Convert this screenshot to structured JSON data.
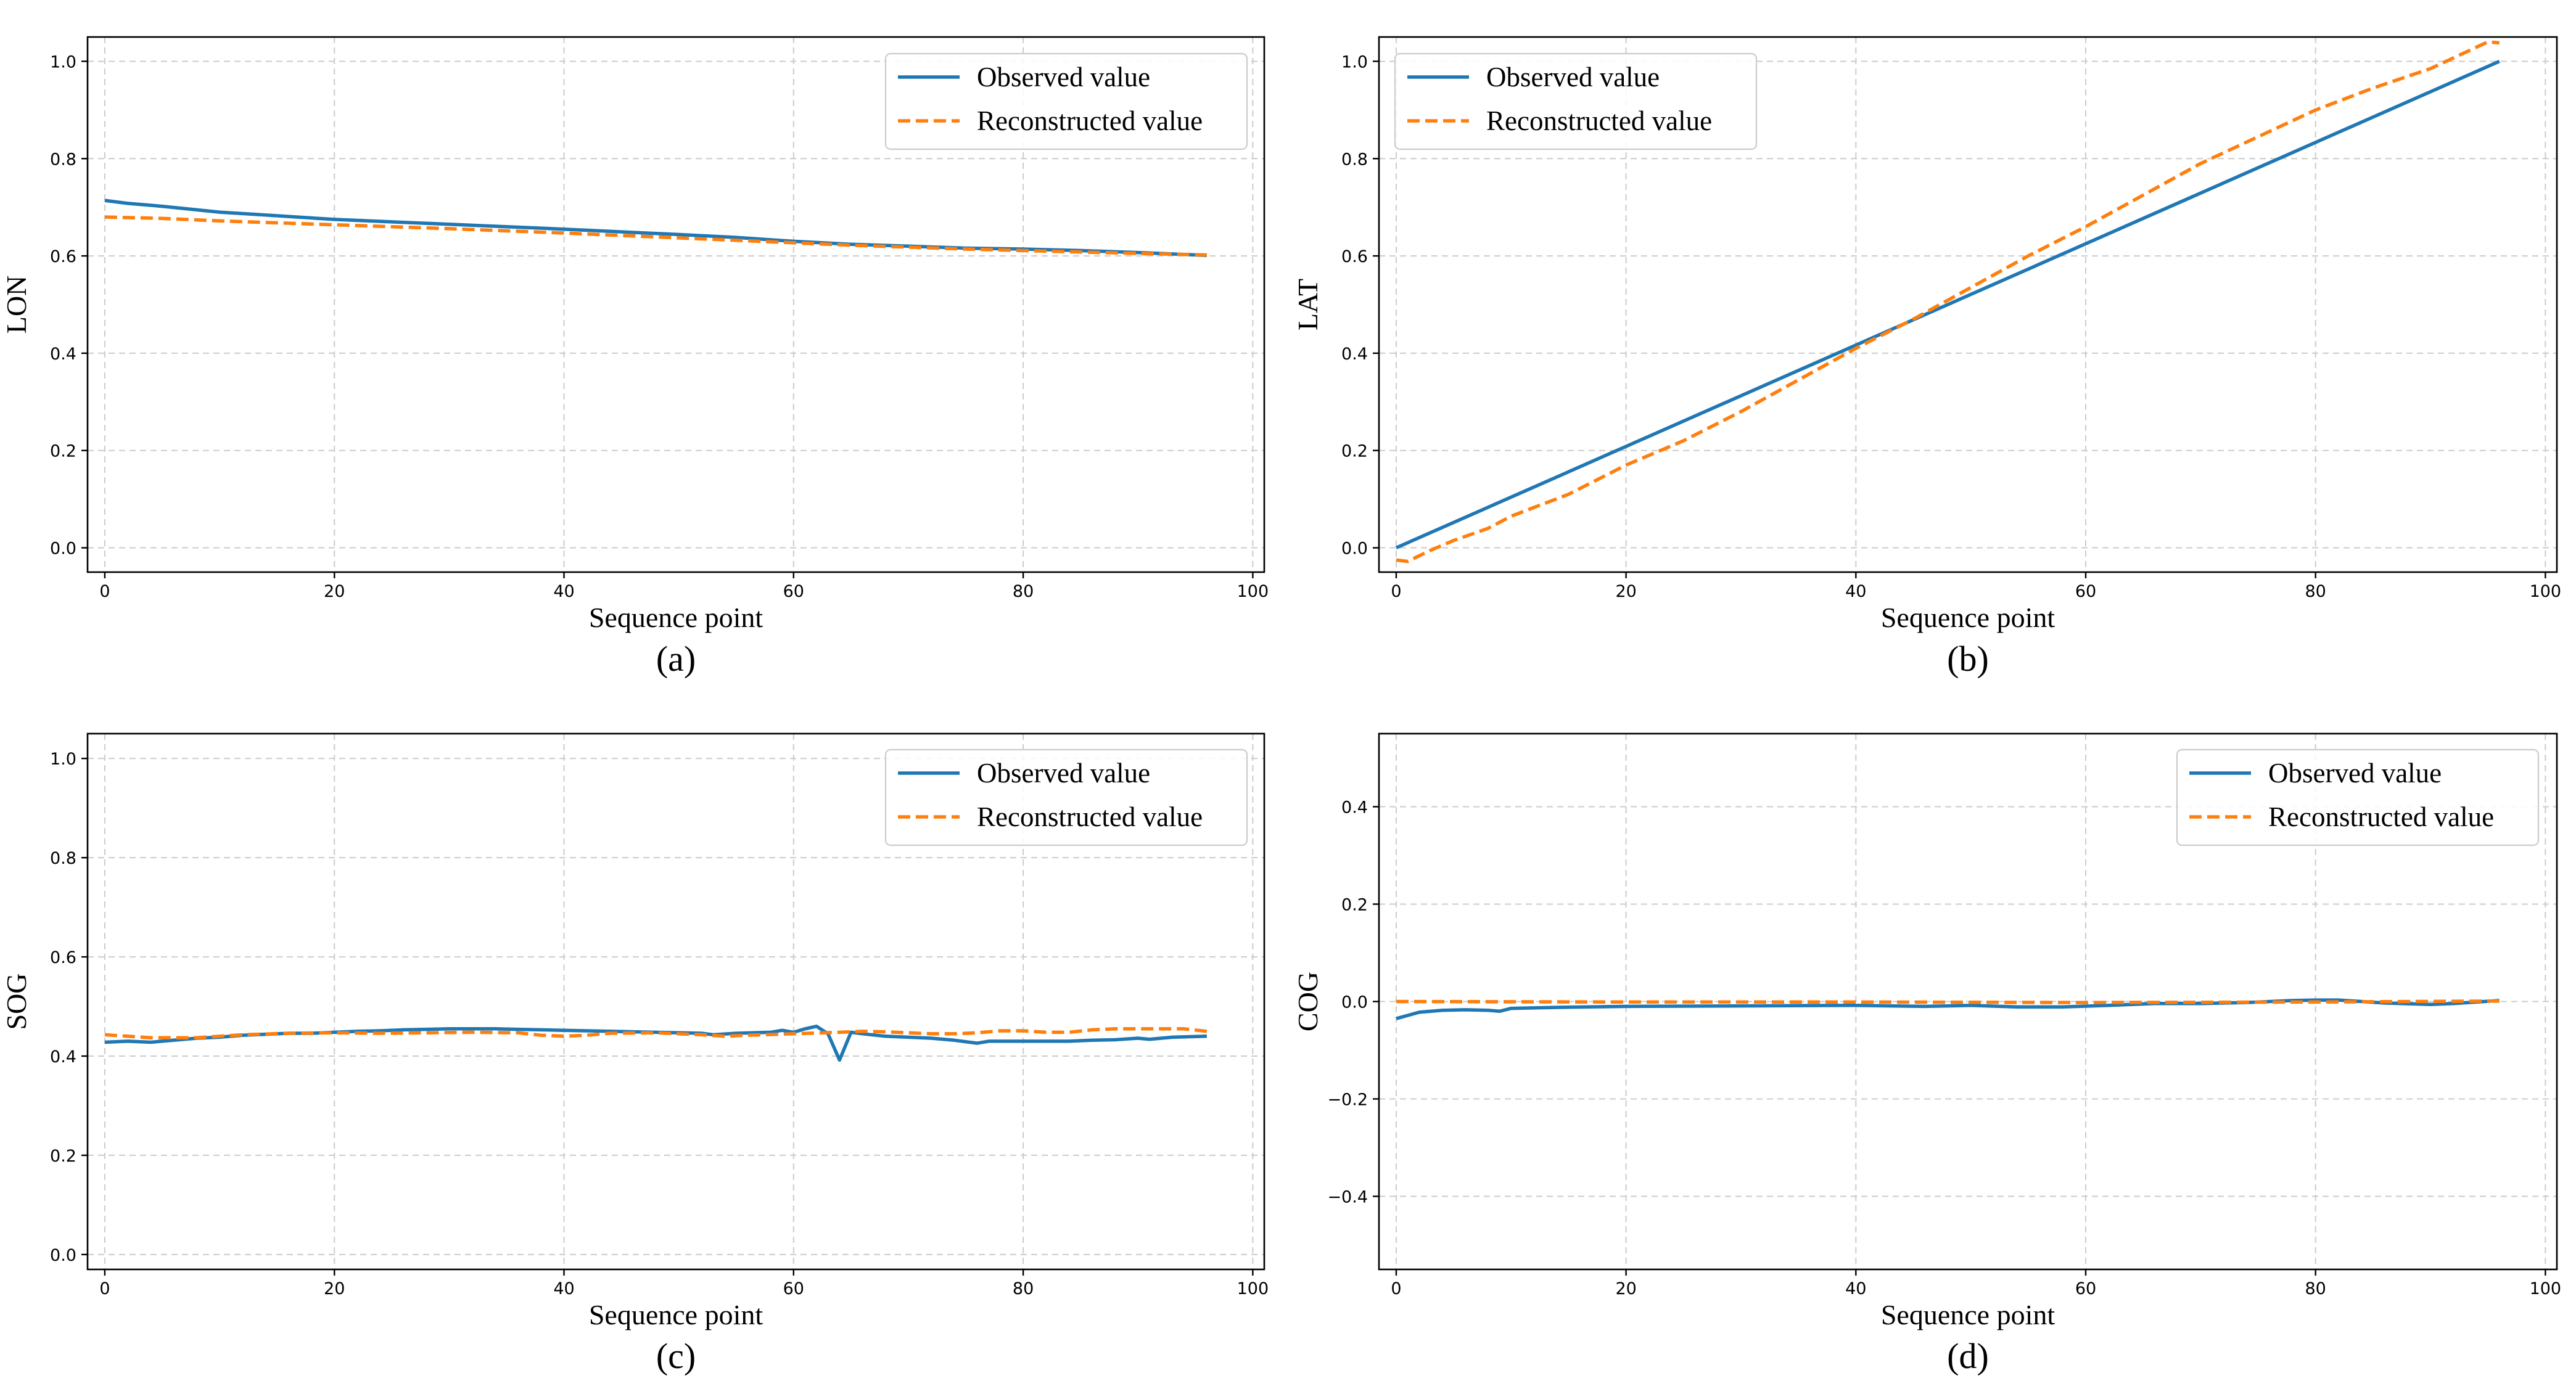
{
  "chart_data": [
    {
      "id": "a",
      "type": "line",
      "caption": "(a)",
      "xlabel": "Sequence point",
      "ylabel": "LON",
      "xlim": [
        -1.5,
        101
      ],
      "ylim": [
        -0.05,
        1.05
      ],
      "xticks": [
        0,
        20,
        40,
        60,
        80,
        100
      ],
      "xtick_labels": [
        "0",
        "20",
        "40",
        "60",
        "80",
        "100"
      ],
      "yticks": [
        0.0,
        0.2,
        0.4,
        0.6,
        0.8,
        1.0
      ],
      "ytick_labels": [
        "0.0",
        "0.2",
        "0.4",
        "0.6",
        "0.8",
        "1.0"
      ],
      "grid": true,
      "legend_position": "top-right",
      "series": [
        {
          "name": "Observed value",
          "style": "solid",
          "color": "#1f77b4",
          "points": [
            [
              0,
              0.714
            ],
            [
              2,
              0.708
            ],
            [
              5,
              0.702
            ],
            [
              10,
              0.69
            ],
            [
              20,
              0.675
            ],
            [
              30,
              0.665
            ],
            [
              40,
              0.655
            ],
            [
              50,
              0.644
            ],
            [
              55,
              0.638
            ],
            [
              60,
              0.63
            ],
            [
              65,
              0.624
            ],
            [
              70,
              0.62
            ],
            [
              75,
              0.616
            ],
            [
              80,
              0.614
            ],
            [
              85,
              0.611
            ],
            [
              90,
              0.607
            ],
            [
              96,
              0.601
            ]
          ]
        },
        {
          "name": "Reconstructed value",
          "style": "dashed",
          "color": "#ff7f0e",
          "points": [
            [
              0,
              0.68
            ],
            [
              5,
              0.677
            ],
            [
              10,
              0.672
            ],
            [
              20,
              0.664
            ],
            [
              30,
              0.656
            ],
            [
              40,
              0.647
            ],
            [
              50,
              0.637
            ],
            [
              55,
              0.632
            ],
            [
              60,
              0.627
            ],
            [
              65,
              0.622
            ],
            [
              70,
              0.618
            ],
            [
              75,
              0.614
            ],
            [
              80,
              0.611
            ],
            [
              85,
              0.608
            ],
            [
              90,
              0.605
            ],
            [
              96,
              0.602
            ]
          ]
        }
      ]
    },
    {
      "id": "b",
      "type": "line",
      "caption": "(b)",
      "xlabel": "Sequence point",
      "ylabel": "LAT",
      "xlim": [
        -1.5,
        101
      ],
      "ylim": [
        -0.05,
        1.05
      ],
      "xticks": [
        0,
        20,
        40,
        60,
        80,
        100
      ],
      "xtick_labels": [
        "0",
        "20",
        "40",
        "60",
        "80",
        "100"
      ],
      "yticks": [
        0.0,
        0.2,
        0.4,
        0.6,
        0.8,
        1.0
      ],
      "ytick_labels": [
        "0.0",
        "0.2",
        "0.4",
        "0.6",
        "0.8",
        "1.0"
      ],
      "grid": true,
      "legend_position": "top-left",
      "series": [
        {
          "name": "Observed value",
          "style": "solid",
          "color": "#1f77b4",
          "points": [
            [
              0,
              0.0
            ],
            [
              96,
              1.0
            ]
          ]
        },
        {
          "name": "Reconstructed value",
          "style": "dashed",
          "color": "#ff7f0e",
          "points": [
            [
              0,
              -0.025
            ],
            [
              1,
              -0.028
            ],
            [
              3,
              -0.005
            ],
            [
              5,
              0.015
            ],
            [
              8,
              0.04
            ],
            [
              10,
              0.065
            ],
            [
              15,
              0.11
            ],
            [
              20,
              0.17
            ],
            [
              25,
              0.22
            ],
            [
              30,
              0.28
            ],
            [
              35,
              0.345
            ],
            [
              40,
              0.41
            ],
            [
              45,
              0.47
            ],
            [
              50,
              0.535
            ],
            [
              55,
              0.6
            ],
            [
              60,
              0.66
            ],
            [
              65,
              0.725
            ],
            [
              70,
              0.79
            ],
            [
              75,
              0.845
            ],
            [
              80,
              0.9
            ],
            [
              85,
              0.945
            ],
            [
              90,
              0.985
            ],
            [
              95,
              1.04
            ],
            [
              96,
              1.038
            ]
          ]
        }
      ]
    },
    {
      "id": "c",
      "type": "line",
      "caption": "(c)",
      "xlabel": "Sequence point",
      "ylabel": "SOG",
      "xlim": [
        -1.5,
        101
      ],
      "ylim": [
        -0.03,
        1.05
      ],
      "xticks": [
        0,
        20,
        40,
        60,
        80,
        100
      ],
      "xtick_labels": [
        "0",
        "20",
        "40",
        "60",
        "80",
        "100"
      ],
      "yticks": [
        0.0,
        0.2,
        0.4,
        0.6,
        0.8,
        1.0
      ],
      "ytick_labels": [
        "0.0",
        "0.2",
        "0.4",
        "0.6",
        "0.8",
        "1.0"
      ],
      "grid": true,
      "legend_position": "top-right",
      "series": [
        {
          "name": "Observed value",
          "style": "solid",
          "color": "#1f77b4",
          "points": [
            [
              0,
              0.428
            ],
            [
              2,
              0.43
            ],
            [
              4,
              0.428
            ],
            [
              6,
              0.432
            ],
            [
              8,
              0.436
            ],
            [
              10,
              0.438
            ],
            [
              12,
              0.442
            ],
            [
              14,
              0.444
            ],
            [
              16,
              0.446
            ],
            [
              18,
              0.446
            ],
            [
              20,
              0.448
            ],
            [
              22,
              0.45
            ],
            [
              24,
              0.451
            ],
            [
              26,
              0.453
            ],
            [
              28,
              0.454
            ],
            [
              30,
              0.455
            ],
            [
              34,
              0.455
            ],
            [
              36,
              0.454
            ],
            [
              38,
              0.453
            ],
            [
              40,
              0.452
            ],
            [
              44,
              0.45
            ],
            [
              48,
              0.448
            ],
            [
              52,
              0.446
            ],
            [
              53,
              0.443
            ],
            [
              55,
              0.446
            ],
            [
              58,
              0.448
            ],
            [
              59,
              0.452
            ],
            [
              60,
              0.448
            ],
            [
              61,
              0.455
            ],
            [
              62,
              0.46
            ],
            [
              63,
              0.445
            ],
            [
              64,
              0.392
            ],
            [
              65,
              0.448
            ],
            [
              66,
              0.445
            ],
            [
              68,
              0.44
            ],
            [
              70,
              0.438
            ],
            [
              72,
              0.436
            ],
            [
              74,
              0.432
            ],
            [
              76,
              0.426
            ],
            [
              77,
              0.43
            ],
            [
              80,
              0.43
            ],
            [
              84,
              0.43
            ],
            [
              86,
              0.432
            ],
            [
              88,
              0.433
            ],
            [
              90,
              0.436
            ],
            [
              91,
              0.434
            ],
            [
              93,
              0.438
            ],
            [
              96,
              0.44
            ]
          ]
        },
        {
          "name": "Reconstructed value",
          "style": "dashed",
          "color": "#ff7f0e",
          "points": [
            [
              0,
              0.443
            ],
            [
              4,
              0.437
            ],
            [
              8,
              0.437
            ],
            [
              12,
              0.443
            ],
            [
              16,
              0.446
            ],
            [
              20,
              0.447
            ],
            [
              24,
              0.446
            ],
            [
              28,
              0.447
            ],
            [
              32,
              0.448
            ],
            [
              36,
              0.447
            ],
            [
              38,
              0.442
            ],
            [
              40,
              0.44
            ],
            [
              42,
              0.442
            ],
            [
              44,
              0.446
            ],
            [
              48,
              0.447
            ],
            [
              52,
              0.443
            ],
            [
              54,
              0.44
            ],
            [
              56,
              0.442
            ],
            [
              60,
              0.445
            ],
            [
              64,
              0.448
            ],
            [
              66,
              0.45
            ],
            [
              68,
              0.449
            ],
            [
              70,
              0.447
            ],
            [
              72,
              0.445
            ],
            [
              74,
              0.445
            ],
            [
              76,
              0.447
            ],
            [
              78,
              0.451
            ],
            [
              80,
              0.451
            ],
            [
              82,
              0.448
            ],
            [
              84,
              0.448
            ],
            [
              86,
              0.453
            ],
            [
              88,
              0.455
            ],
            [
              90,
              0.455
            ],
            [
              94,
              0.455
            ],
            [
              96,
              0.45
            ]
          ]
        }
      ]
    },
    {
      "id": "d",
      "type": "line",
      "caption": "(d)",
      "xlabel": "Sequence point",
      "ylabel": "COG",
      "xlim": [
        -1.5,
        101
      ],
      "ylim": [
        -0.55,
        0.55
      ],
      "xticks": [
        0,
        20,
        40,
        60,
        80,
        100
      ],
      "xtick_labels": [
        "0",
        "20",
        "40",
        "60",
        "80",
        "100"
      ],
      "yticks": [
        -0.4,
        -0.2,
        0.0,
        0.2,
        0.4
      ],
      "ytick_labels": [
        "−0.4",
        "−0.2",
        "0.0",
        "0.2",
        "0.4"
      ],
      "grid": true,
      "legend_position": "top-right",
      "series": [
        {
          "name": "Observed value",
          "style": "solid",
          "color": "#1f77b4",
          "points": [
            [
              0,
              -0.035
            ],
            [
              2,
              -0.022
            ],
            [
              4,
              -0.018
            ],
            [
              6,
              -0.017
            ],
            [
              8,
              -0.018
            ],
            [
              9,
              -0.02
            ],
            [
              10,
              -0.014
            ],
            [
              14,
              -0.012
            ],
            [
              20,
              -0.01
            ],
            [
              30,
              -0.009
            ],
            [
              40,
              -0.008
            ],
            [
              46,
              -0.01
            ],
            [
              50,
              -0.008
            ],
            [
              54,
              -0.011
            ],
            [
              58,
              -0.011
            ],
            [
              62,
              -0.008
            ],
            [
              66,
              -0.004
            ],
            [
              70,
              -0.004
            ],
            [
              74,
              -0.002
            ],
            [
              78,
              0.002
            ],
            [
              80,
              0.003
            ],
            [
              82,
              0.003
            ],
            [
              86,
              -0.003
            ],
            [
              90,
              -0.006
            ],
            [
              92,
              -0.004
            ],
            [
              96,
              0.002
            ]
          ]
        },
        {
          "name": "Reconstructed value",
          "style": "dashed",
          "color": "#ff7f0e",
          "points": [
            [
              0,
              0.0
            ],
            [
              20,
              -0.001
            ],
            [
              40,
              -0.001
            ],
            [
              60,
              -0.002
            ],
            [
              80,
              -0.001
            ],
            [
              96,
              0.001
            ]
          ]
        }
      ]
    }
  ]
}
